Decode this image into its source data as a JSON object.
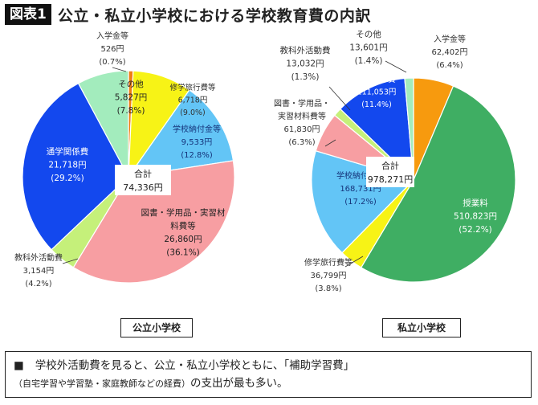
{
  "header": {
    "badge": "図表1",
    "title": "公立・私立小学校における学校教育費の内訳"
  },
  "note": {
    "bullet": "■",
    "main": "学校外活動費を見ると、公立・私立小学校ともに、「補助学習費」",
    "paren": "（自宅学習や学習塾・家庭教師などの経費）",
    "tail": "の支出が最も多い。"
  },
  "chart_data": [
    {
      "type": "pie",
      "title": "公立小学校",
      "total_label": "合計",
      "total_value": "74,336円",
      "slices": [
        {
          "lines": [
            "入学金等"
          ],
          "amount": "526円",
          "pct": "(0.7%)",
          "value": 526,
          "color": "#f07d12"
        },
        {
          "lines": [
            "修学旅行費等"
          ],
          "amount": "6,718円",
          "pct": "(9.0%)",
          "value": 6718,
          "color": "#f7f316"
        },
        {
          "lines": [
            "学校納付金等"
          ],
          "amount": "9,533円",
          "pct": "(12.8%)",
          "value": 9533,
          "color": "#63c5f6"
        },
        {
          "lines": [
            "図書・学用品・実習材",
            "料費等"
          ],
          "amount": "26,860円",
          "pct": "(36.1%)",
          "value": 26860,
          "color": "#f79ea2"
        },
        {
          "lines": [
            "教科外活動費"
          ],
          "amount": "3,154円",
          "pct": "(4.2%)",
          "value": 3154,
          "color": "#c5f07a"
        },
        {
          "lines": [
            "通学関係費"
          ],
          "amount": "21,718円",
          "pct": "(29.2%)",
          "value": 21718,
          "color": "#1348ee"
        },
        {
          "lines": [
            "その他"
          ],
          "amount": "5,827円",
          "pct": "(7.8%)",
          "value": 5827,
          "color": "#a3ecbd"
        }
      ]
    },
    {
      "type": "pie",
      "title": "私立小学校",
      "total_label": "合計",
      "total_value": "978,271円",
      "slices": [
        {
          "lines": [
            "入学金等"
          ],
          "amount": "62,402円",
          "pct": "(6.4%)",
          "value": 62402,
          "color": "#f79a0e"
        },
        {
          "lines": [
            "授業料"
          ],
          "amount": "510,823円",
          "pct": "(52.2%)",
          "value": 510823,
          "color": "#3fae63"
        },
        {
          "lines": [
            "修学旅行費等"
          ],
          "amount": "36,799円",
          "pct": "(3.8%)",
          "value": 36799,
          "color": "#f7f316"
        },
        {
          "lines": [
            "学校納付金等"
          ],
          "amount": "168,731円",
          "pct": "(17.2%)",
          "value": 168731,
          "color": "#63c5f6"
        },
        {
          "lines": [
            "図書・学用品・",
            "実習材料費等"
          ],
          "amount": "61,830円",
          "pct": "(6.3%)",
          "value": 61830,
          "color": "#f79ea2"
        },
        {
          "lines": [
            "教科外活動費"
          ],
          "amount": "13,032円",
          "pct": "(1.3%)",
          "value": 13032,
          "color": "#c5f07a"
        },
        {
          "lines": [
            "通学関係費"
          ],
          "amount": "111,053円",
          "pct": "(11.4%)",
          "value": 111053,
          "color": "#1348ee"
        },
        {
          "lines": [
            "その他"
          ],
          "amount": "13,601円",
          "pct": "(1.4%)",
          "value": 13601,
          "color": "#a3ecbd"
        }
      ]
    }
  ]
}
